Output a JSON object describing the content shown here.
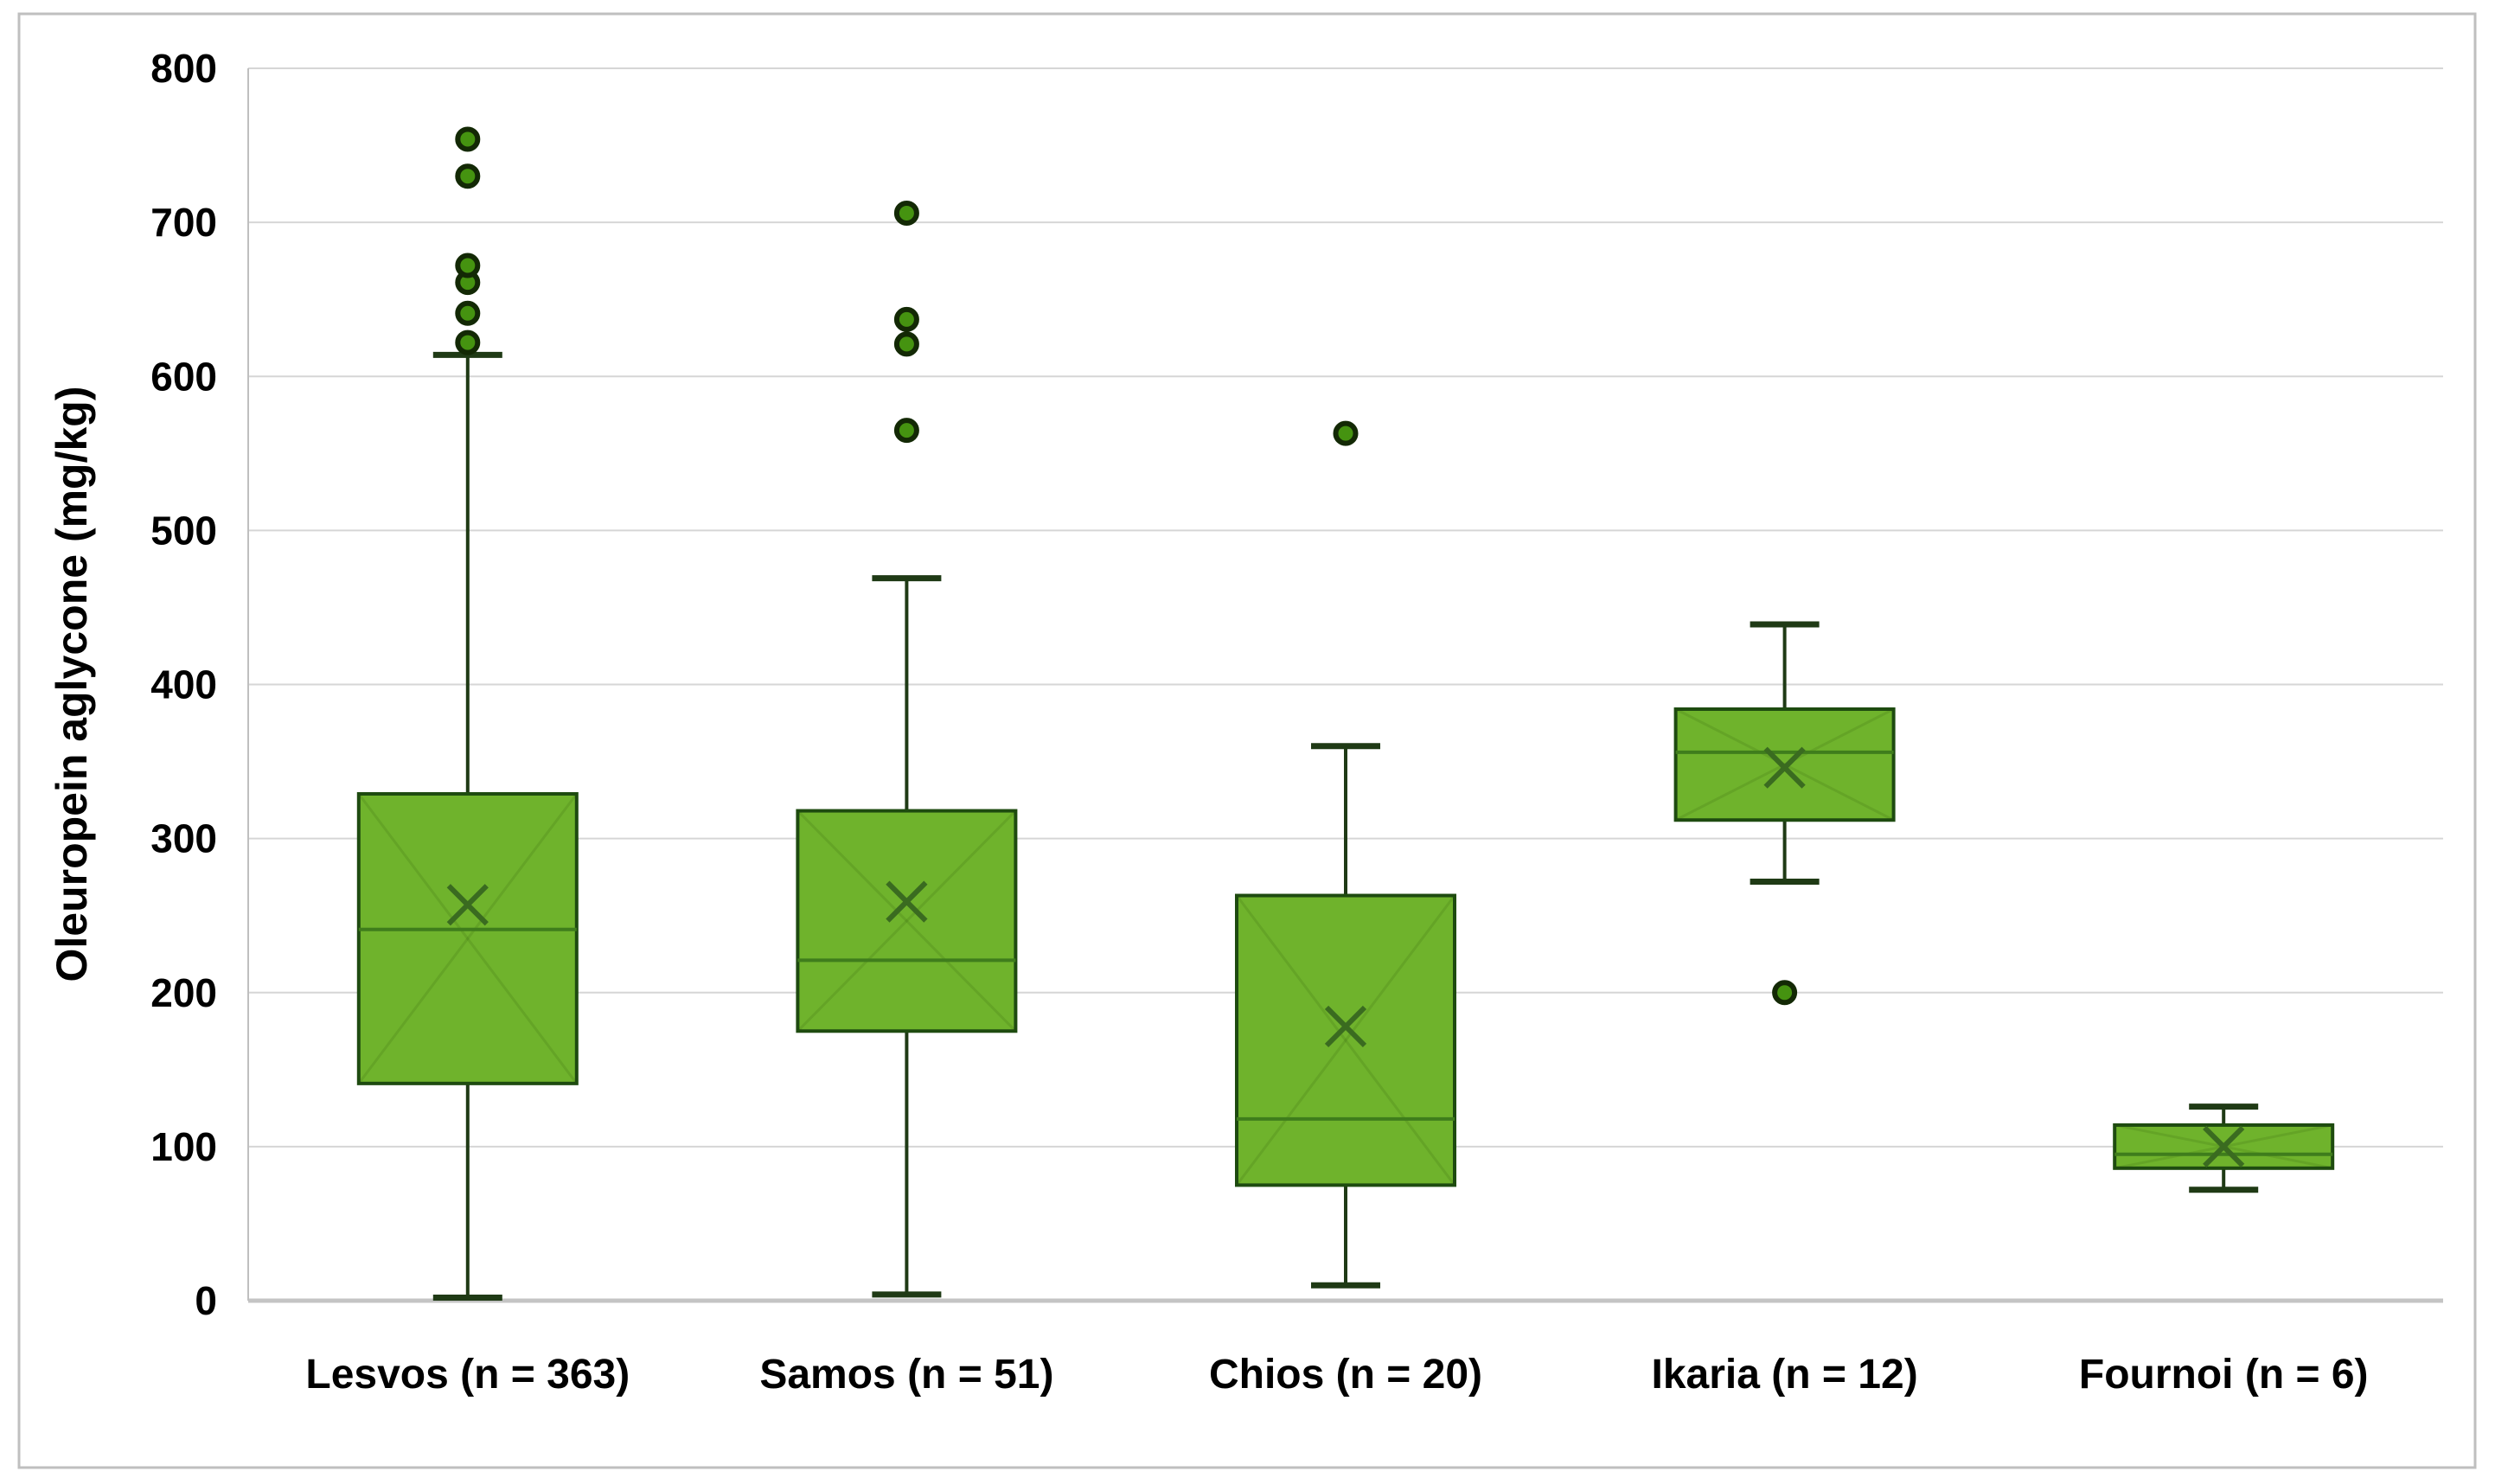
{
  "figure": {
    "background_color": "#ffffff",
    "outer_border_color": "#bfbfbf"
  },
  "chart_data": {
    "type": "box",
    "title": "",
    "xlabel": "",
    "ylabel": "Oleuropein aglycone (mg/kg)",
    "ylim": [
      0,
      800
    ],
    "yticks": [
      0,
      100,
      200,
      300,
      400,
      500,
      600,
      700,
      800
    ],
    "grid": true,
    "legend": "none",
    "categories": [
      "Lesvos (n = 363)",
      "Samos (n = 51)",
      "Chios (n = 20)",
      "Ikaria (n = 12)",
      "Fournoi (n = 6)"
    ],
    "series": [
      {
        "name": "Lesvos",
        "n": 363,
        "whisker_low": 2,
        "q1": 141,
        "median": 241,
        "mean": 257,
        "q3": 329,
        "whisker_high": 614,
        "outliers": [
          622,
          641,
          661,
          672,
          730,
          754
        ]
      },
      {
        "name": "Samos",
        "n": 51,
        "whisker_low": 4,
        "q1": 175,
        "median": 221,
        "mean": 259,
        "q3": 318,
        "whisker_high": 469,
        "outliers": [
          565,
          621,
          637,
          706
        ]
      },
      {
        "name": "Chios",
        "n": 20,
        "whisker_low": 10,
        "q1": 75,
        "median": 118,
        "mean": 178,
        "q3": 263,
        "whisker_high": 360,
        "outliers": [
          563
        ]
      },
      {
        "name": "Ikaria",
        "n": 12,
        "whisker_low": 272,
        "q1": 312,
        "median": 356,
        "mean": 346,
        "q3": 384,
        "whisker_high": 439,
        "outliers": [
          200
        ]
      },
      {
        "name": "Fournoi",
        "n": 6,
        "whisker_low": 72,
        "q1": 86,
        "median": 95,
        "mean": 100,
        "q3": 114,
        "whisker_high": 126,
        "outliers": []
      }
    ],
    "colors": {
      "box_fill": "#6fb32c",
      "box_border": "#1e4b10",
      "median_line": "#3f7d1c",
      "mean_marker": "#3a6b20",
      "whisker": "#1f3a15",
      "outlier_fill": "#459310",
      "outlier_border": "#132905",
      "gridline": "#d6d6d6",
      "zero_line": "#c4c4c4",
      "axis_line": "#bfbfbf"
    }
  }
}
